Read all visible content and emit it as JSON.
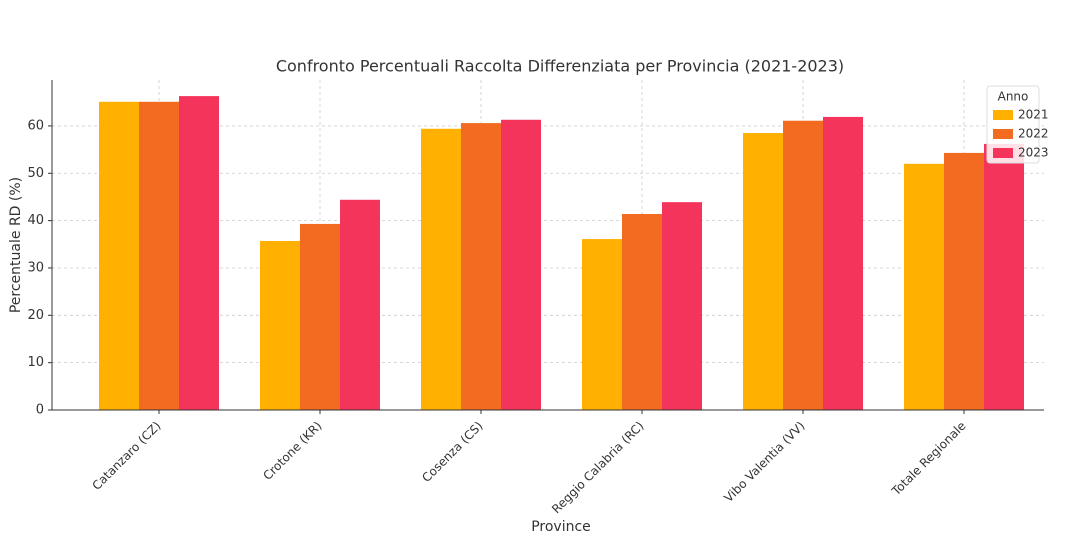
{
  "chart_data": {
    "type": "bar",
    "title": "Confronto Percentuali Raccolta Differenziata per Provincia (2021-2023)",
    "x_label": "Province",
    "y_label": "Percentuale RD (%)",
    "categories": [
      "Catanzaro (CZ)",
      "Crotone (KR)",
      "Cosenza (CS)",
      "Reggio Calabria (RC)",
      "Vibo Valentia (VV)",
      "Totale Regionale"
    ],
    "series": [
      {
        "name": "2021",
        "color": "#ffb000",
        "values": [
          65.1,
          35.7,
          59.4,
          36.1,
          58.5,
          52.0
        ]
      },
      {
        "name": "2022",
        "color": "#f26b21",
        "values": [
          65.1,
          39.3,
          60.6,
          41.4,
          61.1,
          54.3
        ]
      },
      {
        "name": "2023",
        "color": "#f4345a",
        "values": [
          66.3,
          44.4,
          61.3,
          43.9,
          61.9,
          56.2
        ]
      }
    ],
    "legend_title": "Anno",
    "legend": "upper right",
    "ylim": [
      0,
      69.7
    ],
    "yticks": [
      0,
      10,
      20,
      30,
      40,
      50,
      60
    ],
    "grid": true
  }
}
